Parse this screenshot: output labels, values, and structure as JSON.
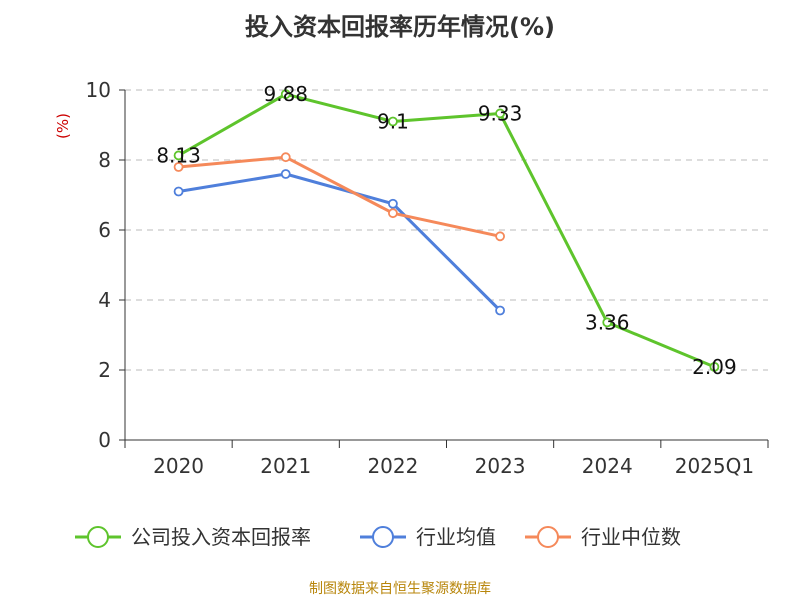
{
  "title": "投入资本回报率历年情况(%)",
  "y_unit": "(%)",
  "source": "制图数据来自恒生聚源数据库",
  "colors": {
    "company": "#5ec42c",
    "avg": "#4f7fdb",
    "median": "#f5895a",
    "grid": "#bbbbbb",
    "axis": "#333333"
  },
  "chart_data": {
    "type": "line",
    "title": "投入资本回报率历年情况(%)",
    "ylabel": "(%)",
    "ylim": [
      0,
      10
    ],
    "yticks": [
      0,
      2,
      4,
      6,
      8,
      10
    ],
    "categories": [
      "2020",
      "2021",
      "2022",
      "2023",
      "2024",
      "2025Q1"
    ],
    "grid": true,
    "legend_position": "bottom",
    "series": [
      {
        "name": "公司投入资本回报率",
        "color": "#5ec42c",
        "values": [
          8.13,
          9.88,
          9.1,
          9.33,
          3.36,
          2.09
        ],
        "labels": true
      },
      {
        "name": "行业均值",
        "color": "#4f7fdb",
        "values": [
          7.1,
          7.6,
          6.75,
          3.7,
          null,
          null
        ],
        "labels": false
      },
      {
        "name": "行业中位数",
        "color": "#f5895a",
        "values": [
          7.8,
          8.08,
          6.48,
          5.82,
          null,
          null
        ],
        "labels": false
      }
    ]
  }
}
